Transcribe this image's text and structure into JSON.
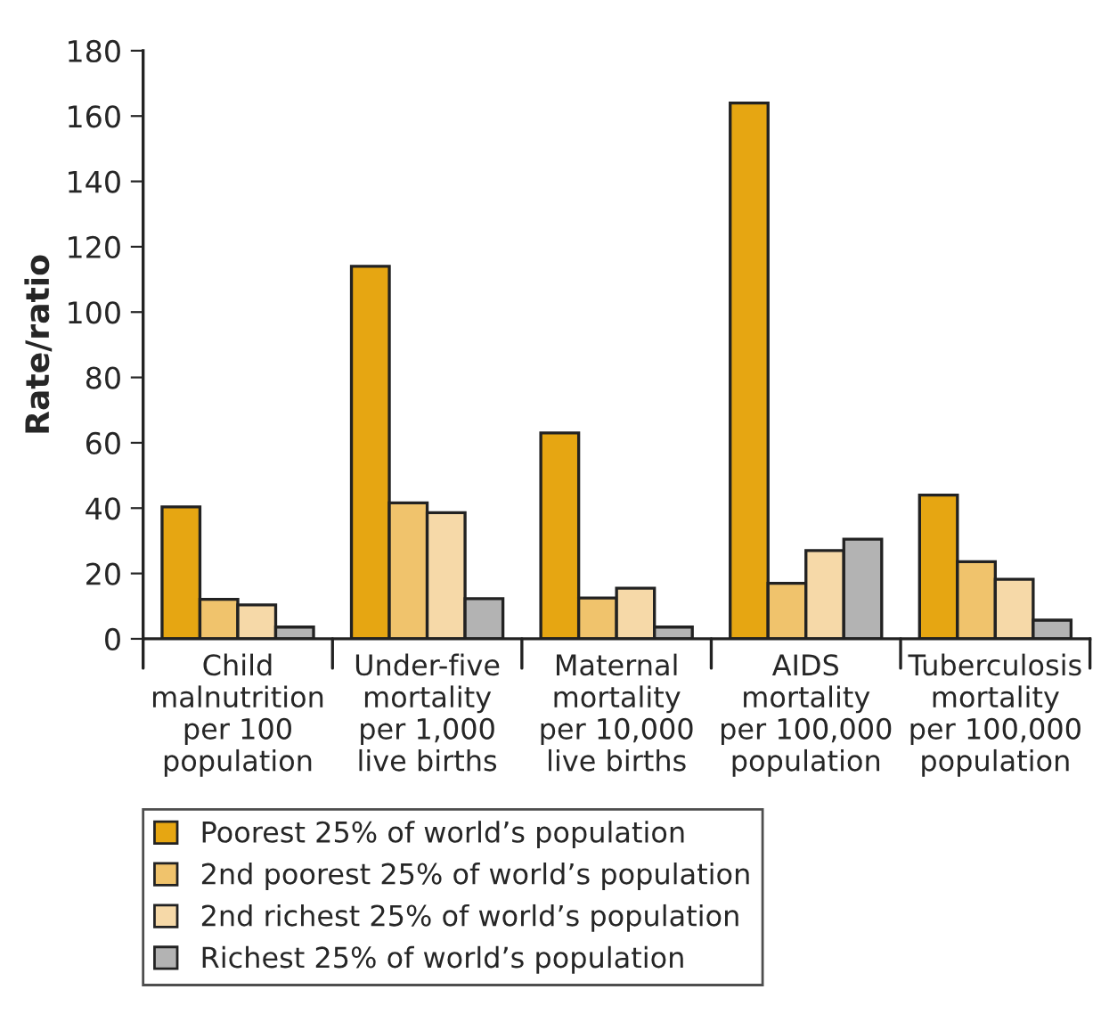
{
  "chart_data": {
    "type": "bar",
    "ylabel": "Rate/ratio",
    "categories": [
      "Child\nmalnutrition\nper 100\npopulation",
      "Under-five\nmortality\nper 1,000\nlive births",
      "Maternal\nmortality\nper 10,000\nlive births",
      "AIDS\nmortality\nper 100,000\npopulation",
      "Tuberculosis\nmortality\nper 100,000\npopulation"
    ],
    "series": [
      {
        "name": "Poorest 25% of world’s population",
        "color": "#e6a612",
        "values": [
          40.4,
          114,
          63,
          164,
          44
        ]
      },
      {
        "name": "2nd poorest 25% of world’s population",
        "color": "#f0c36c",
        "values": [
          12.1,
          41.6,
          12.5,
          17,
          23.6
        ]
      },
      {
        "name": "2nd richest 25% of world’s population",
        "color": "#f6d9a8",
        "values": [
          10.4,
          38.6,
          15.5,
          27,
          18.2
        ]
      },
      {
        "name": "Richest 25% of world’s population",
        "color": "#b3b3b3",
        "values": [
          3.6,
          12.3,
          3.6,
          30.5,
          5.7
        ]
      }
    ],
    "ylim": [
      0,
      180
    ],
    "yticks": [
      0,
      20,
      40,
      60,
      80,
      100,
      120,
      140,
      160,
      180
    ],
    "grid": false,
    "legend": "bottom left"
  }
}
